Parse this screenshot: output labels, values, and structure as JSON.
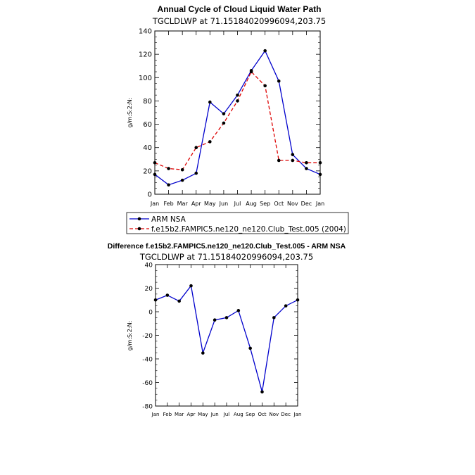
{
  "chart_data": [
    {
      "type": "line",
      "title": "Annual Cycle of Cloud Liquid Water Path",
      "subtitle": "TGCLDLWP  at  71.15184020996094,203.75",
      "ylabel": "g/m:S:2:N:",
      "xlabel": "",
      "categories": [
        "Jan",
        "Feb",
        "Mar",
        "Apr",
        "May",
        "Jun",
        "Jul",
        "Aug",
        "Sep",
        "Oct",
        "Nov",
        "Dec",
        "Jan"
      ],
      "ylim": [
        0,
        140
      ],
      "yticks": [
        0,
        20,
        40,
        60,
        80,
        100,
        120,
        140
      ],
      "legend_position": "bottom",
      "series": [
        {
          "name": "ARM  NSA",
          "color": "#0000cc",
          "dash": "solid",
          "values": [
            17,
            8,
            12,
            18,
            79,
            69,
            85,
            106,
            123,
            97,
            34,
            22,
            17
          ]
        },
        {
          "name": "f.e15b2.FAMPIC5.ne120_ne120.Club_Test.005 (2004)",
          "color": "#dd0000",
          "dash": "dashed",
          "values": [
            27,
            22,
            21,
            40,
            45,
            61,
            80,
            105,
            93,
            29,
            29,
            27,
            27
          ]
        }
      ]
    },
    {
      "type": "line",
      "title": "Difference f.e15b2.FAMPIC5.ne120_ne120.Club_Test.005 - ARM NSA",
      "subtitle": "TGCLDLWP  at  71.15184020996094,203.75",
      "ylabel": "g/m:S:2:N:",
      "xlabel": "",
      "categories": [
        "Jan",
        "Feb",
        "Mar",
        "Apr",
        "May",
        "Jun",
        "Jul",
        "Aug",
        "Sep",
        "Oct",
        "Nov",
        "Dec",
        "Jan"
      ],
      "ylim": [
        -80,
        40
      ],
      "yticks": [
        -80,
        -60,
        -40,
        -20,
        0,
        20,
        40
      ],
      "series": [
        {
          "name": "",
          "color": "#0000cc",
          "dash": "solid",
          "values": [
            10,
            14,
            9,
            22,
            -35,
            -7,
            -5,
            1,
            -31,
            -68,
            -5,
            5,
            10
          ]
        }
      ]
    }
  ]
}
